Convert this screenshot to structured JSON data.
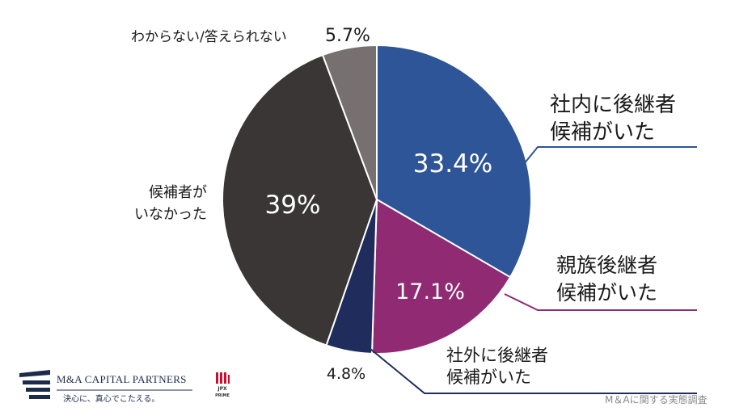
{
  "chart_data": {
    "type": "pie",
    "start": "12 o'clock",
    "direction": "clockwise",
    "slices": [
      {
        "label_lines": [
          "社内に後継者",
          "候補がいた"
        ],
        "value": 33.4,
        "value_text": "33.4%",
        "color": "#2e5597"
      },
      {
        "label_lines": [
          "親族後継者",
          "候補がいた"
        ],
        "value": 17.1,
        "value_text": "17.1%",
        "color": "#902b73"
      },
      {
        "label_lines": [
          "社外に後継者",
          "候補がいた"
        ],
        "value": 4.8,
        "value_text": "4.8%",
        "color": "#1f2c5c"
      },
      {
        "label_lines": [
          "候補者が",
          "いなかった"
        ],
        "value": 39,
        "value_text": "39%",
        "color": "#3a3636"
      },
      {
        "label_lines": [
          "わからない/答えられない"
        ],
        "value": 5.7,
        "value_text": "5.7%",
        "color": "#777070"
      }
    ]
  },
  "footer": {
    "company_name": "M&A CAPITAL PARTNERS",
    "tagline": "決心に、真心でこたえる。",
    "jpx_line1": "JPX",
    "jpx_line2": "PRIME",
    "source": "M＆Aに関する実態調査"
  }
}
